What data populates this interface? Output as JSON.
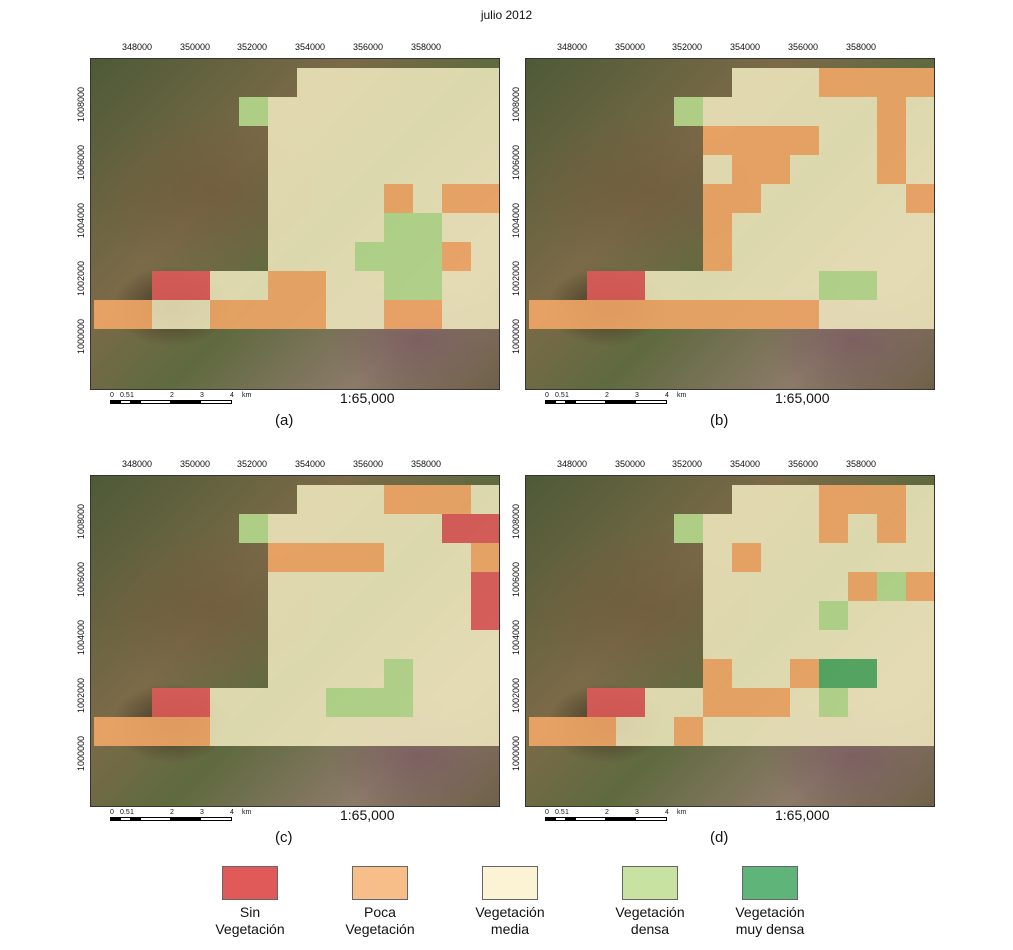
{
  "title": "julio 2012",
  "x_ticks": [
    "348000",
    "350000",
    "352000",
    "354000",
    "356000",
    "358000"
  ],
  "y_ticks": [
    "1008000",
    "1006000",
    "1004000",
    "1002000",
    "1000000"
  ],
  "scale_labels": [
    "0",
    "0.5",
    "1",
    "2",
    "3",
    "4",
    "km"
  ],
  "scale_text": "1:65,000",
  "colors": {
    "R": "#e05a5a",
    "O": "#f5a868",
    "Y": "#f8f0c6",
    "L": "#b6dc8e",
    "G": "#4faa62"
  },
  "panels": [
    {
      "label": "(a)",
      "grid": [
        "_______YYYYYYYLLLLR_",
        "_____LYYYYYYYYYYYY__",
        "______YYYYYYYYLYYY__",
        "______YYYYYYYYYYYYYO",
        "______YYYYOYOOLYYYYO",
        "______YYYYLLYYYLLYYO",
        "______YYYLLLOYYYYY__",
        "__RRYYOOYYLLYYYYYY__",
        "OOYYOOOOYYOOYYYYYY__",
        "____________________"
      ]
    },
    {
      "label": "(b)",
      "grid": [
        "_______YYYOOOOYYYYR_",
        "_____LYYYYYYOYYYYY__",
        "______OOOOYYOYYYYY__",
        "______YOOYYYOYYYYYYO",
        "______OOYYYYYOOOYYYO",
        "______OYYYYYYYYOYYYO",
        "______OYYYYYYYOOOOYY__",
        "__RRYYYYYYLLYYYYOY__",
        "OOOOOOOOOOYYYYYYYY__",
        "____________________"
      ]
    },
    {
      "label": "(c)",
      "grid": [
        "_______YYYOOOYYYYYR_",
        "_____LYYYYYYRROYYY__",
        "______OOOOYYYOOYYY__",
        "______YYYYYYYRRYYYYY",
        "______YYYYYYYRRRLYYO",
        "______YYYYYYYYYYLYYY",
        "______YYYYLYYYYYYYY_",
        "__RRYYYYLLLYYYYYYY__",
        "OOOOYYYYYYYYYYYYYY__",
        "____________________"
      ]
    },
    {
      "label": "(d)",
      "grid": [
        "_______YYYOOOYYYYYR_",
        "_____LYYYYOYOYYYYY__",
        "______YOYYYYYYLYYY__",
        "______YYYYYOLOOYYYYO",
        "______YYYYLYYYYLLYYY",
        "______YYYYYYYYYLLYYY",
        "______OYYOGGYYYYYYO_",
        "__RRYYOOOYLYYYYOY__",
        "OOOYYOYYYYYYYYYYYY__",
        "____________________"
      ]
    }
  ],
  "legend": [
    {
      "line1": "Sin",
      "line2": "Vegetación",
      "color": "#e05a5a"
    },
    {
      "line1": "Poca",
      "line2": "Vegetación",
      "color": "#f7be8a"
    },
    {
      "line1": "Vegetación",
      "line2": "media",
      "color": "#fbf3d3"
    },
    {
      "line1": "Vegetación",
      "line2": "densa",
      "color": "#c8e2a2"
    },
    {
      "line1": "Vegetación",
      "line2": "muy densa",
      "color": "#5fb47a"
    }
  ]
}
